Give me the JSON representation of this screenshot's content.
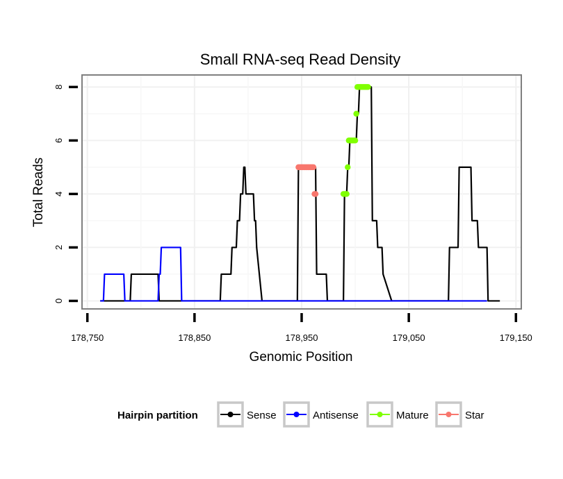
{
  "chart_data": {
    "type": "line",
    "title": "Small RNA-seq Read Density",
    "xlabel": "Genomic Position",
    "ylabel": "Total Reads",
    "xlim": [
      178745,
      179155
    ],
    "ylim": [
      -0.3,
      8.45
    ],
    "xticks": [
      178750,
      178850,
      178950,
      179050,
      179150
    ],
    "xtick_labels": [
      "178,750",
      "178,850",
      "178,950",
      "179,050",
      "179,150"
    ],
    "yticks": [
      0,
      2,
      4,
      6,
      8
    ],
    "ytick_labels": [
      "0",
      "2",
      "4",
      "6",
      "8"
    ],
    "grid": true,
    "legend": {
      "title": "Hairpin partition",
      "position": "bottom",
      "entries": [
        "Sense",
        "Antisense",
        "Mature",
        "Star"
      ]
    },
    "series": [
      {
        "name": "Sense",
        "color": "#000000",
        "marker": false,
        "x": [
          178762,
          178790,
          178791,
          178816,
          178817,
          178874,
          178875,
          178884,
          178885,
          178889,
          178890,
          178892,
          178893,
          178895,
          178896,
          178897,
          178898,
          178905,
          178906,
          178907,
          178908,
          178913,
          178946,
          178947,
          178957,
          178958,
          178963,
          178964,
          178973,
          178974,
          178989,
          178990,
          178992,
          178993,
          178994,
          178995,
          179001,
          179002,
          179003,
          179004,
          179012,
          179013,
          179015,
          179016,
          179020,
          179021,
          179025,
          179026,
          179034,
          179087,
          179088,
          179096,
          179097,
          179108,
          179109,
          179114,
          179115,
          179123,
          179124,
          179135
        ],
        "y": [
          0,
          0,
          1,
          1,
          0,
          0,
          1,
          1,
          2,
          2,
          3,
          3,
          4,
          4,
          5,
          5,
          4,
          4,
          3,
          3,
          2,
          0,
          0,
          5,
          5,
          5,
          5,
          1,
          1,
          0,
          0,
          4,
          4,
          5,
          5,
          6,
          6,
          7,
          7,
          8,
          8,
          8,
          8,
          3,
          3,
          2,
          2,
          1,
          0,
          0,
          2,
          2,
          5,
          5,
          3,
          3,
          2,
          2,
          0,
          0
        ]
      },
      {
        "name": "Antisense",
        "color": "#0000ff",
        "marker": false,
        "x": [
          178762,
          178765,
          178766,
          178784,
          178785,
          178816,
          178817,
          178818,
          178819,
          178837,
          178838,
          179123
        ],
        "y": [
          0,
          0,
          1,
          1,
          0,
          0,
          1,
          1,
          2,
          2,
          0,
          0
        ]
      },
      {
        "name": "Mature",
        "color": "#7fff00",
        "marker": true,
        "x": [
          178989,
          178990,
          178991,
          178992,
          178993,
          178994,
          178995,
          178996,
          178997,
          178998,
          178999,
          179000,
          179001,
          179002,
          179003,
          179004,
          179005,
          179006,
          179007,
          179008,
          179009,
          179010,
          179011,
          179012
        ],
        "y": [
          4,
          4,
          4,
          4,
          5,
          6,
          6,
          6,
          6,
          6,
          6,
          6,
          7,
          8,
          8,
          8,
          8,
          8,
          8,
          8,
          8,
          8,
          8,
          8
        ]
      },
      {
        "name": "Star",
        "color": "#f8766d",
        "marker": true,
        "x": [
          178947,
          178948,
          178949,
          178950,
          178951,
          178952,
          178953,
          178954,
          178955,
          178956,
          178957,
          178958,
          178959,
          178960,
          178961,
          178962,
          178963
        ],
        "y": [
          5,
          5,
          5,
          5,
          5,
          5,
          5,
          5,
          5,
          5,
          5,
          5,
          5,
          5,
          5,
          4,
          4
        ]
      }
    ]
  }
}
